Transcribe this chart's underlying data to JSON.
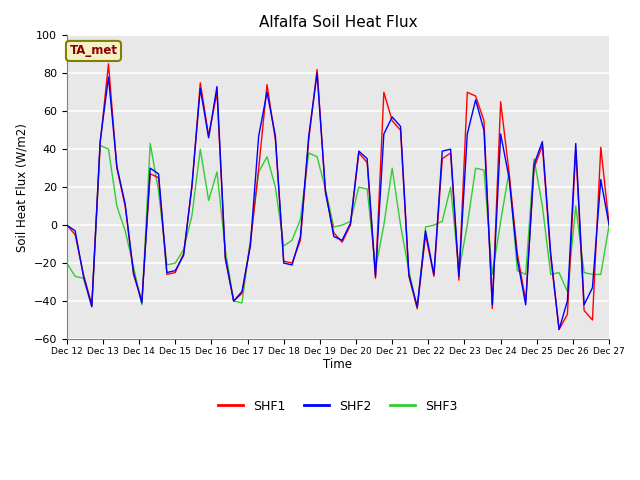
{
  "title": "Alfalfa Soil Heat Flux",
  "ylabel": "Soil Heat Flux (W/m2)",
  "xlabel": "Time",
  "ylim": [
    -60,
    100
  ],
  "background_color": "#e8e8e8",
  "grid_color": "white",
  "ta_met_label": "TA_met",
  "legend_entries": [
    "SHF1",
    "SHF2",
    "SHF3"
  ],
  "line_colors": [
    "red",
    "blue",
    "limegreen"
  ],
  "x_tick_labels": [
    "Dec 12",
    "Dec 13",
    "Dec 14",
    "Dec 15",
    "Dec 16",
    "Dec 17",
    "Dec 18",
    "Dec 19",
    "Dec 20",
    "Dec 21",
    "Dec 22",
    "Dec 23",
    "Dec 24",
    "Dec 25",
    "Dec 26",
    "Dec 27"
  ],
  "shf1": [
    0,
    -5,
    -26,
    -42,
    43,
    85,
    30,
    10,
    -26,
    -40,
    27,
    25,
    -26,
    -25,
    -15,
    20,
    75,
    47,
    70,
    -18,
    -40,
    -36,
    -10,
    30,
    74,
    45,
    -19,
    -20,
    -8,
    45,
    82,
    17,
    -4,
    -9,
    0,
    38,
    33,
    -28,
    70,
    55,
    50,
    -27,
    -44,
    -5,
    -27,
    35,
    38,
    -29,
    70,
    68,
    55,
    -44,
    65,
    28,
    -15,
    -40,
    30,
    42,
    -17,
    -55,
    -47,
    40,
    -45,
    -50,
    41,
    0
  ],
  "shf2": [
    0,
    -3,
    -27,
    -43,
    44,
    78,
    31,
    11,
    -25,
    -41,
    30,
    27,
    -25,
    -24,
    -16,
    21,
    72,
    46,
    73,
    -17,
    -40,
    -35,
    -11,
    47,
    70,
    47,
    -20,
    -21,
    -6,
    47,
    80,
    18,
    -6,
    -8,
    1,
    39,
    35,
    -27,
    48,
    57,
    52,
    -26,
    -43,
    -3,
    -26,
    39,
    40,
    -27,
    48,
    66,
    50,
    -42,
    48,
    25,
    -18,
    -42,
    32,
    44,
    -15,
    -55,
    -40,
    43,
    -42,
    -33,
    24,
    0
  ],
  "shf3": [
    -20,
    -27,
    -28,
    -43,
    42,
    40,
    10,
    -3,
    -22,
    -42,
    43,
    18,
    -21,
    -20,
    -13,
    5,
    40,
    13,
    28,
    -13,
    -40,
    -41,
    -8,
    28,
    36,
    20,
    -11,
    -8,
    3,
    38,
    36,
    19,
    -1,
    0,
    2,
    20,
    19,
    -23,
    0,
    30,
    0,
    -24,
    -44,
    -1,
    0,
    2,
    20,
    -24,
    0,
    30,
    29,
    -26,
    2,
    28,
    -24,
    -26,
    35,
    10,
    -26,
    -25,
    -35,
    10,
    -25,
    -26,
    -26,
    0
  ],
  "yticks": [
    -60,
    -40,
    -20,
    0,
    20,
    40,
    60,
    80,
    100
  ]
}
